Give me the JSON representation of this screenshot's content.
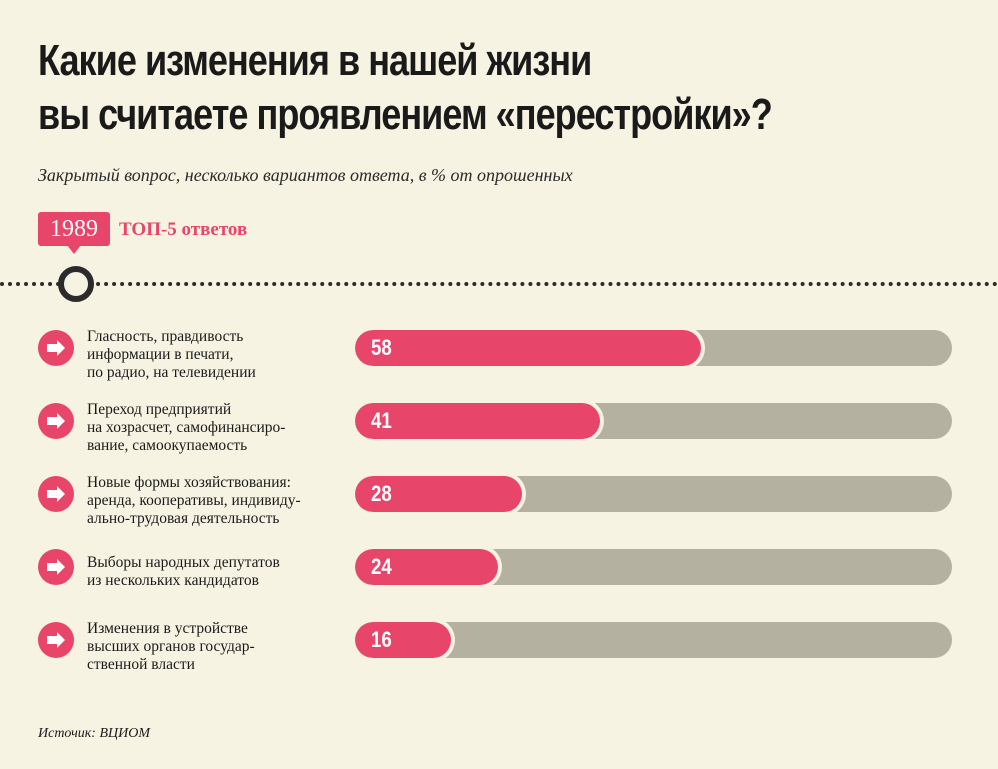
{
  "title_lines": [
    "Какие изменения в нашей жизни",
    "вы считаете проявлением «перестройки»?"
  ],
  "subtitle": "Закрытый вопрос, несколько вариантов ответа, в % от опрошенных",
  "year": "1989",
  "top_label": "ТОП-5 ответов",
  "source": "Источик: ВЦИОМ",
  "colors": {
    "accent": "#e8456b",
    "track": "#b5b1a1",
    "background": "#f7f3e2",
    "dark": "#2b2b2b"
  },
  "icons": {
    "row_icon": "arrow-right-icon",
    "timeline": "timeline-marker-icon"
  },
  "chart_data": {
    "type": "bar",
    "orientation": "horizontal",
    "xlim": [
      0,
      100
    ],
    "grid": false,
    "legend": "none",
    "categories": [
      [
        "Гласность, правдивость",
        "информации в печати,",
        "по радио, на телевидении"
      ],
      [
        "Переход предприятий",
        "на хозрасчет, самофинансиро-",
        "вание, самоокупаемость"
      ],
      [
        "Новые формы хозяйствования:",
        "аренда, кооперативы, индивиду-",
        "ально-трудовая деятельность"
      ],
      [
        "Выборы народных депутатов",
        "из нескольких кандидатов"
      ],
      [
        "Изменения в устройстве",
        "высших органов государ-",
        "ственной власти"
      ]
    ],
    "values": [
      58,
      41,
      28,
      24,
      16
    ]
  }
}
